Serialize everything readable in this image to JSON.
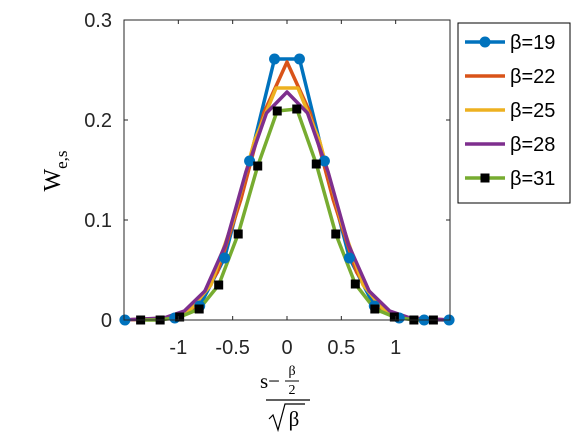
{
  "chart_data": {
    "type": "line",
    "xlim": [
      -1.5,
      1.5
    ],
    "ylim": [
      0,
      0.3
    ],
    "xticks": [
      -1,
      -0.5,
      0,
      0.5,
      1
    ],
    "xtick_labels": [
      "-1",
      "-0.5",
      "0",
      "0.5",
      "1"
    ],
    "yticks": [
      0,
      0.1,
      0.2,
      0.3
    ],
    "ytick_labels": [
      "0",
      "0.1",
      "0.2",
      "0.3"
    ],
    "ylabel": {
      "base": "W",
      "sub": "e,s"
    },
    "xlabel": {
      "num_left": "s−",
      "num_frac_top": "β",
      "num_frac_bottom": "2",
      "den": "β"
    },
    "grid": false,
    "legend_position": "outside-right",
    "series": [
      {
        "name": "β=19",
        "color": "#0072BD",
        "marker": "circle",
        "x": [
          -1.4916,
          -1.0328,
          -0.8034,
          -0.5739,
          -0.3444,
          -0.1147,
          0.1147,
          0.3444,
          0.5739,
          0.8034,
          1.0328,
          1.2622,
          1.4916
        ],
        "y": [
          0,
          0.002,
          0.014,
          0.062,
          0.159,
          0.261,
          0.261,
          0.159,
          0.062,
          0.014,
          0.002,
          0,
          0
        ]
      },
      {
        "name": "β=22",
        "color": "#D95319",
        "marker": "none",
        "x": [
          -1.4924,
          -1.066,
          -0.8528,
          -0.6396,
          -0.4264,
          -0.2132,
          0,
          0.2132,
          0.4264,
          0.6396,
          0.8528,
          1.066,
          1.4924
        ],
        "y": [
          0,
          0.002,
          0.013,
          0.048,
          0.12,
          0.207,
          0.258,
          0.207,
          0.12,
          0.048,
          0.013,
          0.002,
          0
        ]
      },
      {
        "name": "β=25",
        "color": "#EDB120",
        "marker": "none",
        "x": [
          -1.5,
          -1.1,
          -0.9,
          -0.7,
          -0.5,
          -0.3,
          -0.1,
          0.1,
          0.3,
          0.5,
          0.7,
          0.9,
          1.1,
          1.5
        ],
        "y": [
          0,
          0.002,
          0.009,
          0.035,
          0.098,
          0.179,
          0.232,
          0.232,
          0.179,
          0.098,
          0.035,
          0.009,
          0.002,
          0
        ]
      },
      {
        "name": "β=28",
        "color": "#7E2F8E",
        "marker": "none",
        "x": [
          -1.5119,
          -1.1339,
          -0.9449,
          -0.7559,
          -0.5669,
          -0.378,
          -0.189,
          0,
          0.189,
          0.378,
          0.5669,
          0.7559,
          0.9449,
          1.1339,
          1.5119
        ],
        "y": [
          0,
          0.002,
          0.009,
          0.029,
          0.075,
          0.148,
          0.207,
          0.228,
          0.207,
          0.148,
          0.075,
          0.029,
          0.009,
          0.002,
          0
        ]
      },
      {
        "name": "β=31",
        "color": "#77AC30",
        "marker": "square",
        "marker_color": "#000000",
        "x": [
          -1.347,
          -1.1674,
          -0.9878,
          -0.8082,
          -0.6286,
          -0.449,
          -0.2694,
          -0.0898,
          0.0898,
          0.2694,
          0.449,
          0.6286,
          0.8082,
          0.9878,
          1.1674,
          1.347
        ],
        "y": [
          0,
          0,
          0.003,
          0.011,
          0.035,
          0.086,
          0.154,
          0.209,
          0.211,
          0.156,
          0.086,
          0.036,
          0.011,
          0.003,
          0,
          0
        ]
      }
    ]
  }
}
